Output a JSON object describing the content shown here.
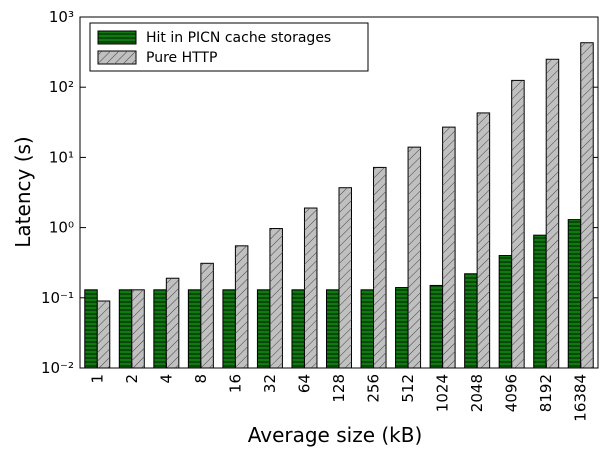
{
  "chart_data": {
    "type": "bar",
    "log_scale": true,
    "legend": "upper left",
    "x_label": "Average size (kB)",
    "y_label": "Latency (s)",
    "categories": [
      "1",
      "2",
      "4",
      "8",
      "16",
      "32",
      "64",
      "128",
      "256",
      "512",
      "1024",
      "2048",
      "4096",
      "8192",
      "16384"
    ],
    "series": [
      {
        "name": "Hit in PICN cache storages",
        "color": "#0f7a0f",
        "hatch": "horizontal",
        "values": [
          0.13,
          0.13,
          0.13,
          0.13,
          0.13,
          0.13,
          0.13,
          0.13,
          0.13,
          0.14,
          0.15,
          0.22,
          0.4,
          0.78,
          1.3
        ]
      },
      {
        "name": "Pure HTTP",
        "color": "#c0c0c0",
        "hatch": "diagonal",
        "values": [
          0.09,
          0.13,
          0.19,
          0.31,
          0.55,
          0.97,
          1.9,
          3.7,
          7.2,
          14,
          27,
          43,
          125,
          250,
          430
        ]
      }
    ],
    "ylim": [
      0.01,
      1000
    ],
    "yticks": [
      {
        "value": 0.01,
        "label": "10⁻²"
      },
      {
        "value": 0.1,
        "label": "10⁻¹"
      },
      {
        "value": 1,
        "label": "10⁰"
      },
      {
        "value": 10,
        "label": "10¹"
      },
      {
        "value": 100,
        "label": "10²"
      },
      {
        "value": 1000,
        "label": "10³"
      }
    ]
  }
}
